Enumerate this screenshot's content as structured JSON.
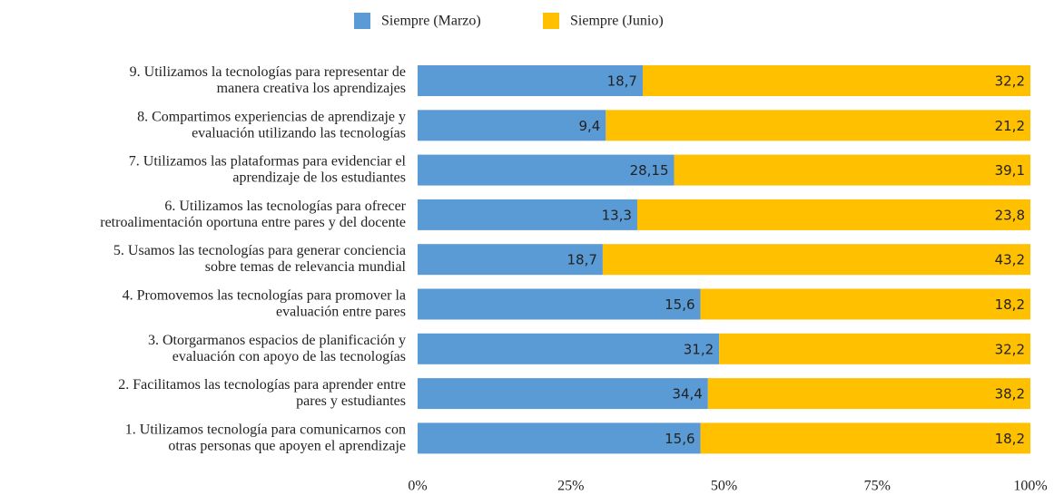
{
  "chart_data": {
    "type": "bar",
    "orientation": "horizontal",
    "stacking": "percent",
    "categories": [
      [
        "9. Utilizamos la tecnologías para representar de",
        "manera creativa los aprendizajes"
      ],
      [
        "8. Compartimos experiencias de aprendizaje y",
        "evaluación utilizando las tecnologías"
      ],
      [
        "7. Utilizamos las plataformas para evidenciar el",
        "aprendizaje de los estudiantes"
      ],
      [
        "6. Utilizamos las tecnologías para ofrecer",
        "retroalimentación oportuna entre pares y del docente"
      ],
      [
        "5. Usamos las tecnologías para generar conciencia",
        "sobre temas de relevancia mundial"
      ],
      [
        "4. Promovemos las tecnologías para promover la",
        "evaluación entre pares"
      ],
      [
        "3. Otorgarmanos espacios de planificación y",
        "evaluación con apoyo de las tecnologías"
      ],
      [
        "2. Facilitamos las tecnologías para aprender entre",
        "pares y estudiantes"
      ],
      [
        "1. Utilizamos tecnología para comunicarnos con",
        "otras personas que apoyen el aprendizaje"
      ]
    ],
    "series": [
      {
        "name": "Siempre (Marzo)",
        "color": "#5b9bd5",
        "values": [
          18.7,
          9.4,
          28.15,
          13.3,
          18.7,
          15.6,
          31.2,
          34.4,
          15.6
        ],
        "value_labels": [
          "18,7",
          "9,4",
          "28,15",
          "13,3",
          "18,7",
          "15,6",
          "31,2",
          "34,4",
          "15,6"
        ]
      },
      {
        "name": "Siempre (Junio)",
        "color": "#ffc000",
        "values": [
          32.2,
          21.2,
          39.1,
          23.8,
          43.2,
          18.2,
          32.2,
          38.2,
          18.2
        ],
        "value_labels": [
          "32,2",
          "21,2",
          "39,1",
          "23,8",
          "43,2",
          "18,2",
          "32,2",
          "38,2",
          "18,2"
        ]
      }
    ],
    "xlim": [
      0,
      100
    ],
    "xticks": [
      {
        "value": 0,
        "label": "0%"
      },
      {
        "value": 25,
        "label": "25%"
      },
      {
        "value": 50,
        "label": "50%"
      },
      {
        "value": 75,
        "label": "75%"
      },
      {
        "value": 100,
        "label": "100%"
      }
    ],
    "legend": "top"
  }
}
